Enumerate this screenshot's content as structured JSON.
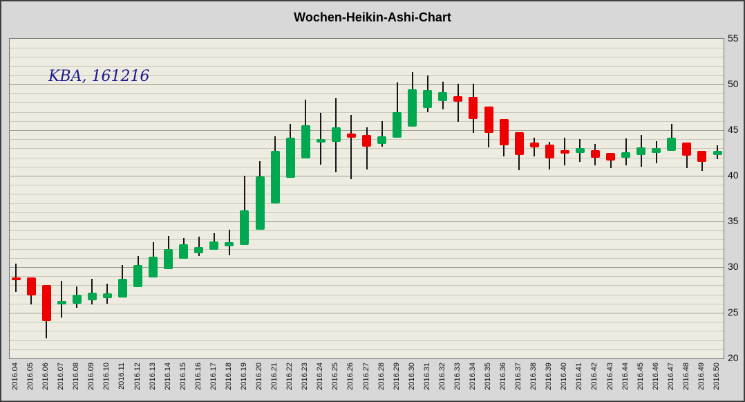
{
  "window": {
    "title": "Wochen-Heikin-Ashi-Chart"
  },
  "annotation": {
    "text": "KBA, 161216"
  },
  "colors": {
    "outer_bg": "#d8d8d8",
    "plot_bg": "#eeece1",
    "grid_minor": "#c9c7bc",
    "grid_major": "#9b998f",
    "up": "#00a84f",
    "down": "#ee0000",
    "annotation": "#191990"
  },
  "chart_data": {
    "type": "candlestick",
    "subtype": "heikin-ashi",
    "title": "Wochen-Heikin-Ashi-Chart",
    "annotation": "KBA, 161216",
    "xlabel": "",
    "ylabel": "",
    "ylim": [
      20,
      55
    ],
    "y_ticks": [
      55,
      50,
      45,
      40,
      35,
      30,
      25,
      20
    ],
    "grid": "horizontal only: minor every 1 unit, major every 5 units",
    "legend_position": "none",
    "series": [
      {
        "week": "2016.04",
        "open": 28.9,
        "high": 30.4,
        "low": 27.3,
        "close": 28.6,
        "direction": "down"
      },
      {
        "week": "2016.05",
        "open": 28.9,
        "high": 28.9,
        "low": 25.9,
        "close": 26.9,
        "direction": "down"
      },
      {
        "week": "2016.06",
        "open": 28.0,
        "high": 28.0,
        "low": 22.2,
        "close": 24.1,
        "direction": "down"
      },
      {
        "week": "2016.07",
        "open": 25.9,
        "high": 28.5,
        "low": 24.5,
        "close": 26.3,
        "direction": "up"
      },
      {
        "week": "2016.08",
        "open": 26.0,
        "high": 27.9,
        "low": 25.5,
        "close": 27.0,
        "direction": "up"
      },
      {
        "week": "2016.09",
        "open": 26.4,
        "high": 28.7,
        "low": 25.9,
        "close": 27.2,
        "direction": "up"
      },
      {
        "week": "2016.10",
        "open": 26.6,
        "high": 28.2,
        "low": 26.0,
        "close": 27.1,
        "direction": "up"
      },
      {
        "week": "2016.11",
        "open": 26.7,
        "high": 30.2,
        "low": 26.7,
        "close": 28.7,
        "direction": "up"
      },
      {
        "week": "2016.12",
        "open": 27.8,
        "high": 31.2,
        "low": 27.8,
        "close": 30.2,
        "direction": "up"
      },
      {
        "week": "2016.13",
        "open": 28.9,
        "high": 32.7,
        "low": 28.9,
        "close": 31.1,
        "direction": "up"
      },
      {
        "week": "2016.14",
        "open": 29.8,
        "high": 33.4,
        "low": 29.8,
        "close": 32.0,
        "direction": "up"
      },
      {
        "week": "2016.15",
        "open": 30.9,
        "high": 33.2,
        "low": 30.9,
        "close": 32.5,
        "direction": "up"
      },
      {
        "week": "2016.16",
        "open": 31.5,
        "high": 33.3,
        "low": 31.2,
        "close": 32.2,
        "direction": "up"
      },
      {
        "week": "2016.17",
        "open": 31.9,
        "high": 33.7,
        "low": 31.9,
        "close": 32.8,
        "direction": "up"
      },
      {
        "week": "2016.18",
        "open": 32.3,
        "high": 34.1,
        "low": 31.3,
        "close": 32.7,
        "direction": "up"
      },
      {
        "week": "2016.19",
        "open": 32.4,
        "high": 40.0,
        "low": 32.4,
        "close": 36.2,
        "direction": "up"
      },
      {
        "week": "2016.20",
        "open": 34.1,
        "high": 41.6,
        "low": 34.1,
        "close": 39.9,
        "direction": "up"
      },
      {
        "week": "2016.21",
        "open": 37.0,
        "high": 44.3,
        "low": 37.0,
        "close": 42.7,
        "direction": "up"
      },
      {
        "week": "2016.22",
        "open": 39.8,
        "high": 45.7,
        "low": 39.8,
        "close": 44.2,
        "direction": "up"
      },
      {
        "week": "2016.23",
        "open": 41.9,
        "high": 48.3,
        "low": 41.9,
        "close": 45.5,
        "direction": "up"
      },
      {
        "week": "2016.24",
        "open": 43.6,
        "high": 46.9,
        "low": 41.2,
        "close": 44.0,
        "direction": "up"
      },
      {
        "week": "2016.25",
        "open": 43.7,
        "high": 48.5,
        "low": 40.4,
        "close": 45.3,
        "direction": "up"
      },
      {
        "week": "2016.26",
        "open": 44.6,
        "high": 46.7,
        "low": 39.6,
        "close": 44.2,
        "direction": "down"
      },
      {
        "week": "2016.27",
        "open": 44.5,
        "high": 45.3,
        "low": 40.7,
        "close": 43.2,
        "direction": "down"
      },
      {
        "week": "2016.28",
        "open": 43.5,
        "high": 46.0,
        "low": 43.2,
        "close": 44.3,
        "direction": "up"
      },
      {
        "week": "2016.29",
        "open": 44.2,
        "high": 50.2,
        "low": 44.2,
        "close": 47.0,
        "direction": "up"
      },
      {
        "week": "2016.30",
        "open": 45.4,
        "high": 51.4,
        "low": 45.4,
        "close": 49.5,
        "direction": "up"
      },
      {
        "week": "2016.31",
        "open": 47.4,
        "high": 51.0,
        "low": 47.0,
        "close": 49.4,
        "direction": "up"
      },
      {
        "week": "2016.32",
        "open": 48.2,
        "high": 50.3,
        "low": 47.3,
        "close": 49.2,
        "direction": "up"
      },
      {
        "week": "2016.33",
        "open": 48.7,
        "high": 50.1,
        "low": 45.9,
        "close": 48.1,
        "direction": "down"
      },
      {
        "week": "2016.34",
        "open": 48.6,
        "high": 50.1,
        "low": 44.7,
        "close": 46.2,
        "direction": "down"
      },
      {
        "week": "2016.35",
        "open": 47.6,
        "high": 47.6,
        "low": 43.1,
        "close": 44.7,
        "direction": "down"
      },
      {
        "week": "2016.36",
        "open": 46.2,
        "high": 46.2,
        "low": 42.1,
        "close": 43.3,
        "direction": "down"
      },
      {
        "week": "2016.37",
        "open": 44.8,
        "high": 44.8,
        "low": 40.6,
        "close": 42.3,
        "direction": "down"
      },
      {
        "week": "2016.38",
        "open": 43.6,
        "high": 44.2,
        "low": 42.1,
        "close": 43.1,
        "direction": "down"
      },
      {
        "week": "2016.39",
        "open": 43.4,
        "high": 43.7,
        "low": 40.7,
        "close": 41.9,
        "direction": "down"
      },
      {
        "week": "2016.40",
        "open": 42.8,
        "high": 44.2,
        "low": 41.1,
        "close": 42.4,
        "direction": "down"
      },
      {
        "week": "2016.41",
        "open": 42.5,
        "high": 44.0,
        "low": 41.5,
        "close": 43.0,
        "direction": "up"
      },
      {
        "week": "2016.42",
        "open": 42.8,
        "high": 43.5,
        "low": 41.1,
        "close": 42.0,
        "direction": "down"
      },
      {
        "week": "2016.43",
        "open": 42.5,
        "high": 42.5,
        "low": 40.8,
        "close": 41.7,
        "direction": "down"
      },
      {
        "week": "2016.44",
        "open": 42.0,
        "high": 44.1,
        "low": 41.1,
        "close": 42.6,
        "direction": "up"
      },
      {
        "week": "2016.45",
        "open": 42.3,
        "high": 44.5,
        "low": 41.0,
        "close": 43.1,
        "direction": "up"
      },
      {
        "week": "2016.46",
        "open": 42.5,
        "high": 43.8,
        "low": 41.4,
        "close": 43.0,
        "direction": "up"
      },
      {
        "week": "2016.47",
        "open": 42.7,
        "high": 45.7,
        "low": 42.7,
        "close": 44.2,
        "direction": "up"
      },
      {
        "week": "2016.48",
        "open": 43.6,
        "high": 43.6,
        "low": 40.8,
        "close": 42.2,
        "direction": "down"
      },
      {
        "week": "2016.49",
        "open": 42.7,
        "high": 42.7,
        "low": 40.5,
        "close": 41.5,
        "direction": "down"
      },
      {
        "week": "2016.50",
        "open": 42.3,
        "high": 43.3,
        "low": 41.8,
        "close": 42.7,
        "direction": "up"
      }
    ]
  }
}
